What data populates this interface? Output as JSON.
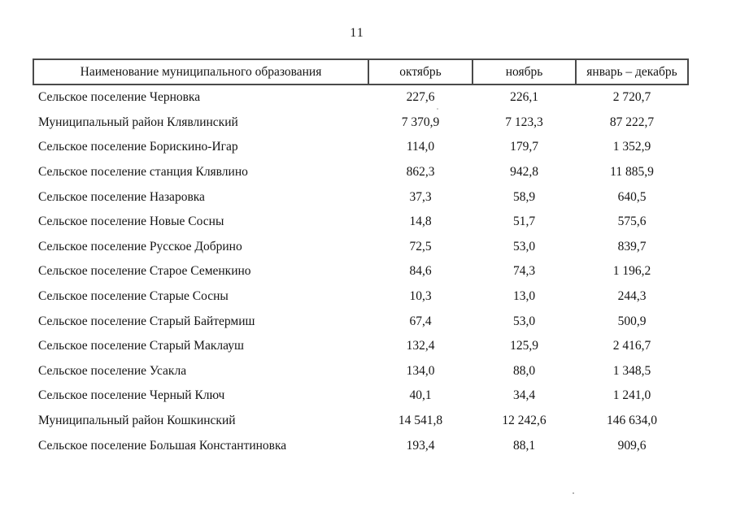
{
  "page": {
    "number": "11"
  },
  "table": {
    "columns": {
      "name": "Наименование муниципального образования",
      "october": "октябрь",
      "november": "ноябрь",
      "jan_dec": "январь – декабрь"
    },
    "rows": [
      {
        "name": "Сельское поселение Черновка",
        "october": "227,6",
        "november": "226,1",
        "jan_dec": "2 720,7"
      },
      {
        "name": "Муниципальный район Клявлинский",
        "october": "7 370,9",
        "november": "7 123,3",
        "jan_dec": "87 222,7"
      },
      {
        "name": "Сельское поселение Борискино-Игар",
        "october": "114,0",
        "november": "179,7",
        "jan_dec": "1 352,9"
      },
      {
        "name": "Сельское поселение станция Клявлино",
        "october": "862,3",
        "november": "942,8",
        "jan_dec": "11 885,9"
      },
      {
        "name": "Сельское поселение Назаровка",
        "october": "37,3",
        "november": "58,9",
        "jan_dec": "640,5"
      },
      {
        "name": "Сельское поселение Новые Сосны",
        "october": "14,8",
        "november": "51,7",
        "jan_dec": "575,6"
      },
      {
        "name": "Сельское поселение Русское Добрино",
        "october": "72,5",
        "november": "53,0",
        "jan_dec": "839,7"
      },
      {
        "name": "Сельское поселение Старое Семенкино",
        "october": "84,6",
        "november": "74,3",
        "jan_dec": "1 196,2"
      },
      {
        "name": "Сельское поселение Старые Сосны",
        "october": "10,3",
        "november": "13,0",
        "jan_dec": "244,3"
      },
      {
        "name": "Сельское поселение Старый Байтермиш",
        "october": "67,4",
        "november": "53,0",
        "jan_dec": "500,9"
      },
      {
        "name": "Сельское поселение Старый Маклауш",
        "october": "132,4",
        "november": "125,9",
        "jan_dec": "2 416,7"
      },
      {
        "name": "Сельское поселение Усакла",
        "october": "134,0",
        "november": "88,0",
        "jan_dec": "1 348,5"
      },
      {
        "name": "Сельское поселение Черный Ключ",
        "october": "40,1",
        "november": "34,4",
        "jan_dec": "1 241,0"
      },
      {
        "name": "Муниципальный район Кошкинский",
        "october": "14 541,8",
        "november": "12 242,6",
        "jan_dec": "146 634,0"
      },
      {
        "name": "Сельское поселение Большая Константиновка",
        "october": "193,4",
        "november": "88,1",
        "jan_dec": "909,6"
      }
    ]
  }
}
